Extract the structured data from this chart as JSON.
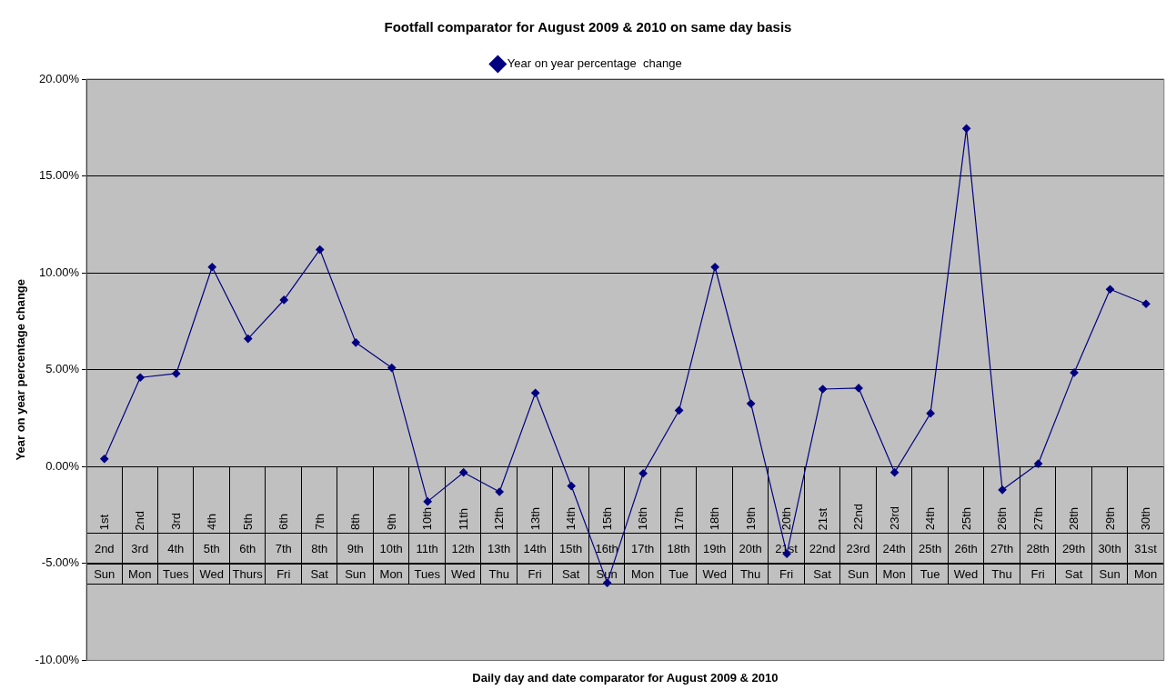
{
  "chart_data": {
    "type": "line",
    "title": "Footfall comparator for August 2009 & 2010 on same day basis",
    "xlabel": "Daily day and date comparator for August 2009 & 2010",
    "ylabel": "Year on year percentage change",
    "categories": [
      "1st\n2nd\nSun",
      "2nd\n3rd\nMon",
      "3rd\n4th\nTues",
      "4th\n5th\nWed",
      "5th\n6th\nThurs",
      "6th\n7th\nFri",
      "7th\n8th\nSat",
      "8th\n9th\nSun",
      "9th\n10th\nMon",
      "10th\n11th\nTues",
      "11th\n12th\nWed",
      "12th\n13th\nThu",
      "13th\n14th\nFri",
      "14th\n15th\nSat",
      "15th\n16th\nSun",
      "16th\n17th\nMon",
      "17th\n18th\nTue",
      "18th\n19th\nWed",
      "19th\n20th\nThu",
      "20th\n21st\nFri",
      "21st\n22nd\nSat",
      "22nd\n23rd\nSun",
      "23rd\n24th\nMon",
      "24th\n25th\nTue",
      "25th\n26th\nWed",
      "26th\n27th\nThu",
      "27th\n28th\nFri",
      "28th\n29th\nSat",
      "29th\n30th\nSun",
      "30th\n31st\nMon"
    ],
    "series": [
      {
        "name": "Year on year percentage  change",
        "color": "#000080",
        "values": [
          0.4,
          4.6,
          4.8,
          10.3,
          6.6,
          8.6,
          11.2,
          6.4,
          5.1,
          -1.8,
          -0.3,
          -1.3,
          3.8,
          -1.0,
          -6.0,
          -0.35,
          2.9,
          10.3,
          3.25,
          -4.5,
          4.0,
          4.05,
          -0.3,
          2.75,
          17.45,
          -1.2,
          0.15,
          4.85,
          9.15,
          8.4
        ]
      }
    ],
    "ylim": [
      -10,
      20
    ],
    "yticks": [
      {
        "value": -10,
        "label": "-10.00%"
      },
      {
        "value": -5,
        "label": "-5.00%"
      },
      {
        "value": 0,
        "label": "0.00%"
      },
      {
        "value": 5,
        "label": "5.00%"
      },
      {
        "value": 10,
        "label": "10.00%"
      },
      {
        "value": 15,
        "label": "15.00%"
      },
      {
        "value": 20,
        "label": "20.00%"
      }
    ],
    "grid": "y",
    "legend": "top",
    "marker": "diamond",
    "line_style": "solid"
  }
}
